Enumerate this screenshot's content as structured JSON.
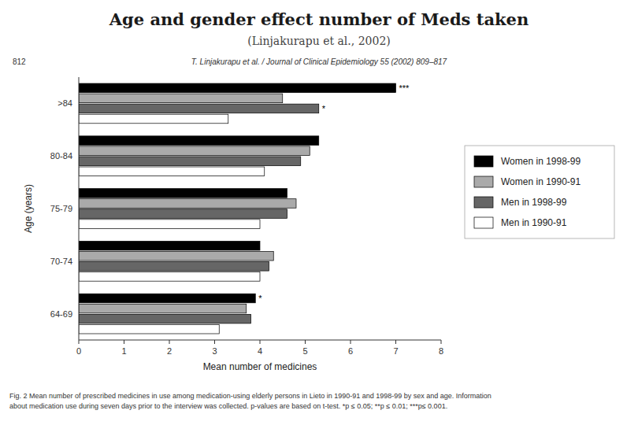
{
  "chart_data": {
    "type": "bar",
    "orientation": "horizontal",
    "title": "Age and gender effect number of Meds taken",
    "subtitle": "(Linjakurapu et al., 2002)",
    "xlabel": "Mean number of medicines",
    "ylabel": "Age (years)",
    "xlim": [
      0,
      8
    ],
    "xticks": [
      0,
      1,
      2,
      3,
      4,
      5,
      6,
      7,
      8
    ],
    "grid": false,
    "legend": "right",
    "categories": [
      "64-69",
      "70-74",
      "75-79",
      "80-84",
      ">84"
    ],
    "series": [
      {
        "name": "Women in 1998-99",
        "color": "#000000",
        "values": [
          3.9,
          4.0,
          4.6,
          5.3,
          7.0
        ]
      },
      {
        "name": "Women in 1990-91",
        "color": "#aaaaaa",
        "values": [
          3.7,
          4.3,
          4.8,
          5.1,
          4.5
        ]
      },
      {
        "name": "Men in 1998-99",
        "color": "#666666",
        "values": [
          3.8,
          4.2,
          4.6,
          4.9,
          5.3
        ]
      },
      {
        "name": "Men in 1990-91",
        "color": "#ffffff",
        "values": [
          3.1,
          4.0,
          4.0,
          4.1,
          3.3
        ]
      }
    ],
    "annotations": [
      {
        "text": "***",
        "series": 0,
        "category": 4
      },
      {
        "text": "*",
        "series": 2,
        "category": 4
      },
      {
        "text": "*",
        "series": 0,
        "category": 0
      }
    ],
    "page_number": "812",
    "source": "T. Linjakurapu et al. / Journal of Clinical Epidemiology 55 (2002) 809–817",
    "caption": "Fig. 2 Mean number of prescribed medicines in use among medication-using elderly persons in Lieto in 1990-91 and 1998-99 by sex and age. Information\nabout medication use during seven days prior to the interview was collected. p-values are based on t-test. *p ≤ 0.05; **p ≤ 0.01; ***p≤ 0.001."
  }
}
